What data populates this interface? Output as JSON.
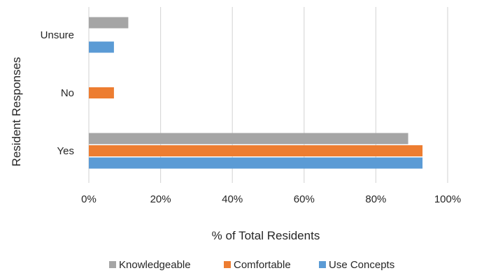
{
  "chart_data": {
    "type": "bar",
    "orientation": "horizontal",
    "categories": [
      "Unsure",
      "No",
      "Yes"
    ],
    "series": [
      {
        "name": "Knowledgeable",
        "color": "#a5a5a5",
        "values": [
          11,
          0,
          89
        ]
      },
      {
        "name": "Comfortable",
        "color": "#ed7d31",
        "values": [
          0,
          7,
          93
        ]
      },
      {
        "name": "Use Concepts",
        "color": "#5b9bd5",
        "values": [
          7,
          0,
          93
        ]
      }
    ],
    "xlabel": "% of Total Residents",
    "ylabel": "Resident Responses",
    "xlim": [
      0,
      100
    ],
    "xticks": [
      "0%",
      "20%",
      "40%",
      "60%",
      "80%",
      "100%"
    ],
    "grid": "vertical",
    "legend_position": "bottom",
    "gridline_color": "#d9d9d9"
  }
}
